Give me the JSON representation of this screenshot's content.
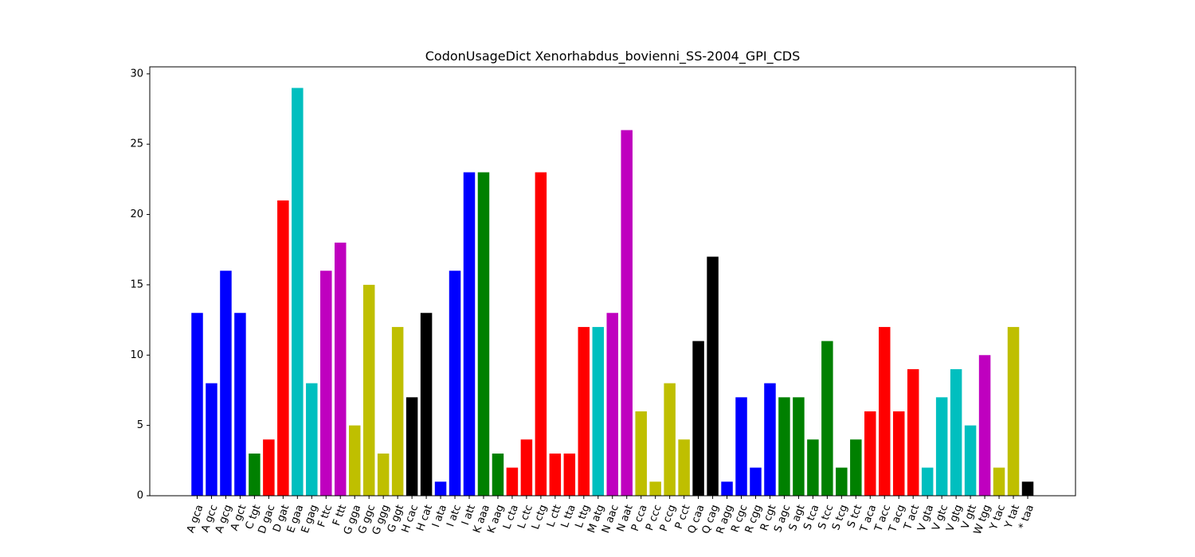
{
  "chart_data": {
    "type": "bar",
    "title": "CodonUsageDict Xenorhabdus_bovienni_SS-2004_GPI_CDS",
    "xlabel": "",
    "ylabel": "",
    "ylim": [
      0,
      30.5
    ],
    "yticks": [
      0,
      5,
      10,
      15,
      20,
      25,
      30
    ],
    "grid": false,
    "categories": [
      "A gca",
      "A gcc",
      "A gcg",
      "A gct",
      "C tgt",
      "D gac",
      "D gat",
      "E gaa",
      "E gag",
      "F ttc",
      "F ttt",
      "G gga",
      "G ggc",
      "G ggg",
      "G ggt",
      "H cac",
      "H cat",
      "I ata",
      "I atc",
      "I att",
      "K aaa",
      "K aag",
      "L cta",
      "L ctc",
      "L ctg",
      "L ctt",
      "L tta",
      "L ttg",
      "M atg",
      "N aac",
      "N aat",
      "P cca",
      "P ccc",
      "P ccg",
      "P cct",
      "Q caa",
      "Q cag",
      "R agg",
      "R cgc",
      "R cgg",
      "R cgt",
      "S agc",
      "S agt",
      "S tca",
      "S tcc",
      "S tcg",
      "S tct",
      "T aca",
      "T acc",
      "T acg",
      "T act",
      "V gta",
      "V gtc",
      "V gtg",
      "V gtt",
      "W tgg",
      "Y tac",
      "Y tat",
      "* taa"
    ],
    "values": [
      13,
      8,
      16,
      13,
      3,
      4,
      21,
      29,
      8,
      16,
      18,
      5,
      15,
      3,
      12,
      7,
      13,
      1,
      16,
      23,
      23,
      3,
      2,
      4,
      23,
      3,
      3,
      12,
      12,
      13,
      26,
      6,
      1,
      8,
      4,
      11,
      17,
      1,
      7,
      2,
      8,
      7,
      7,
      4,
      11,
      2,
      4,
      6,
      12,
      6,
      9,
      2,
      7,
      9,
      5,
      10,
      2,
      12,
      1
    ],
    "colors": [
      "#0000ff",
      "#0000ff",
      "#0000ff",
      "#0000ff",
      "#008000",
      "#ff0000",
      "#ff0000",
      "#00bfbf",
      "#00bfbf",
      "#bf00bf",
      "#bf00bf",
      "#bfbf00",
      "#bfbf00",
      "#bfbf00",
      "#bfbf00",
      "#000000",
      "#000000",
      "#0000ff",
      "#0000ff",
      "#0000ff",
      "#008000",
      "#008000",
      "#ff0000",
      "#ff0000",
      "#ff0000",
      "#ff0000",
      "#ff0000",
      "#ff0000",
      "#00bfbf",
      "#bf00bf",
      "#bf00bf",
      "#bfbf00",
      "#bfbf00",
      "#bfbf00",
      "#bfbf00",
      "#000000",
      "#000000",
      "#0000ff",
      "#0000ff",
      "#0000ff",
      "#0000ff",
      "#008000",
      "#008000",
      "#008000",
      "#008000",
      "#008000",
      "#008000",
      "#ff0000",
      "#ff0000",
      "#ff0000",
      "#ff0000",
      "#00bfbf",
      "#00bfbf",
      "#00bfbf",
      "#00bfbf",
      "#bf00bf",
      "#bfbf00",
      "#bfbf00",
      "#000000"
    ]
  }
}
